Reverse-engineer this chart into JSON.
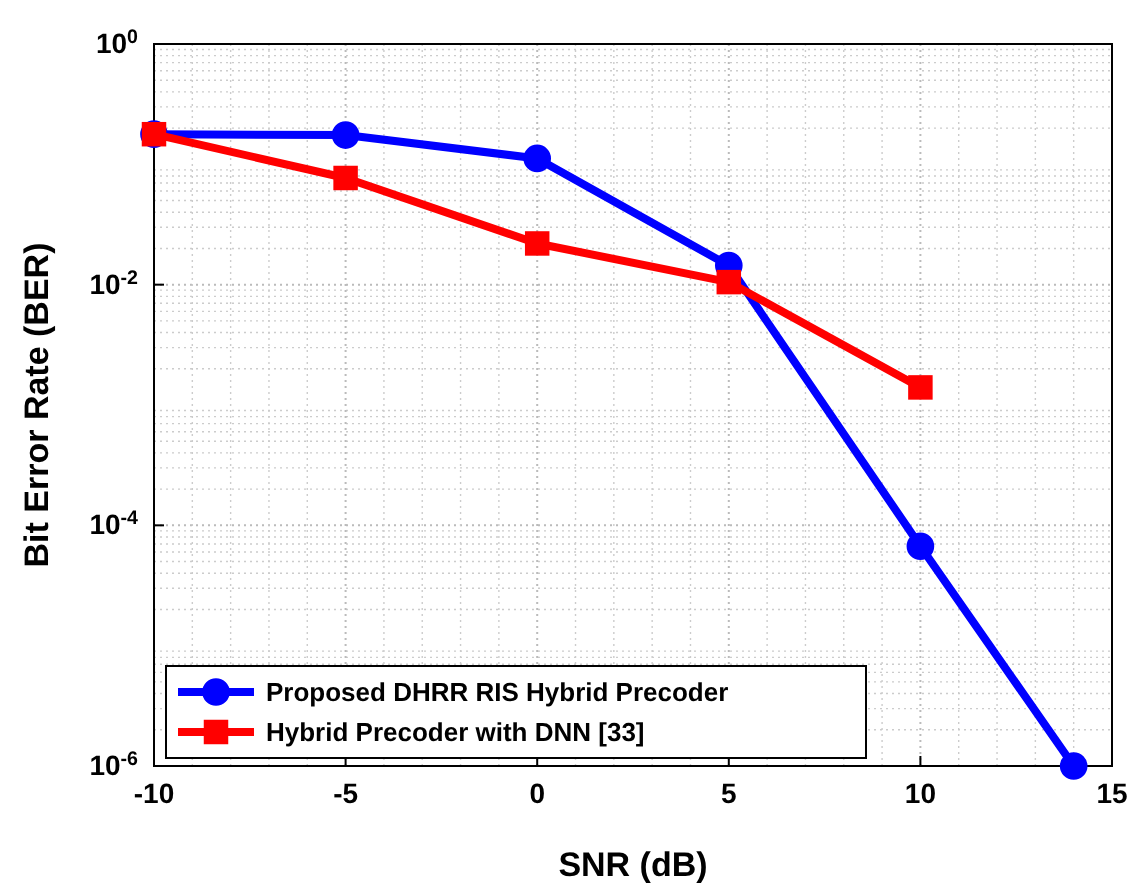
{
  "chart_data": {
    "type": "line",
    "xlabel": "SNR (dB)",
    "ylabel": "Bit Error Rate (BER)",
    "x": [
      -10,
      -5,
      0,
      5,
      10,
      14
    ],
    "series": [
      {
        "name": "Proposed DHRR RIS Hybrid Precoder",
        "color": "#0000ff",
        "marker": "circle",
        "values": [
          0.178,
          0.175,
          0.112,
          0.0144,
          6.7e-05,
          1e-06
        ]
      },
      {
        "name": "Hybrid Precoder with DNN [33]",
        "color": "#ff0000",
        "marker": "square",
        "x": [
          -10,
          -5,
          0,
          5,
          10
        ],
        "values": [
          0.178,
          0.077,
          0.022,
          0.0105,
          0.0014
        ]
      }
    ],
    "xlim": [
      -10,
      15
    ],
    "xticks": [
      -10,
      -5,
      0,
      5,
      10,
      15
    ],
    "ylim": [
      1e-06,
      1
    ],
    "yticks": [
      {
        "value": 1,
        "label": "10$^{0}$"
      },
      {
        "value": 0.01,
        "label": "10$^{-2}$"
      },
      {
        "value": 0.0001,
        "label": "10$^{-4}$"
      },
      {
        "value": 1e-06,
        "label": "10$^{-6}$"
      }
    ],
    "log": "y",
    "grid": true,
    "legend": "bottom left",
    "line_style": "solid"
  }
}
